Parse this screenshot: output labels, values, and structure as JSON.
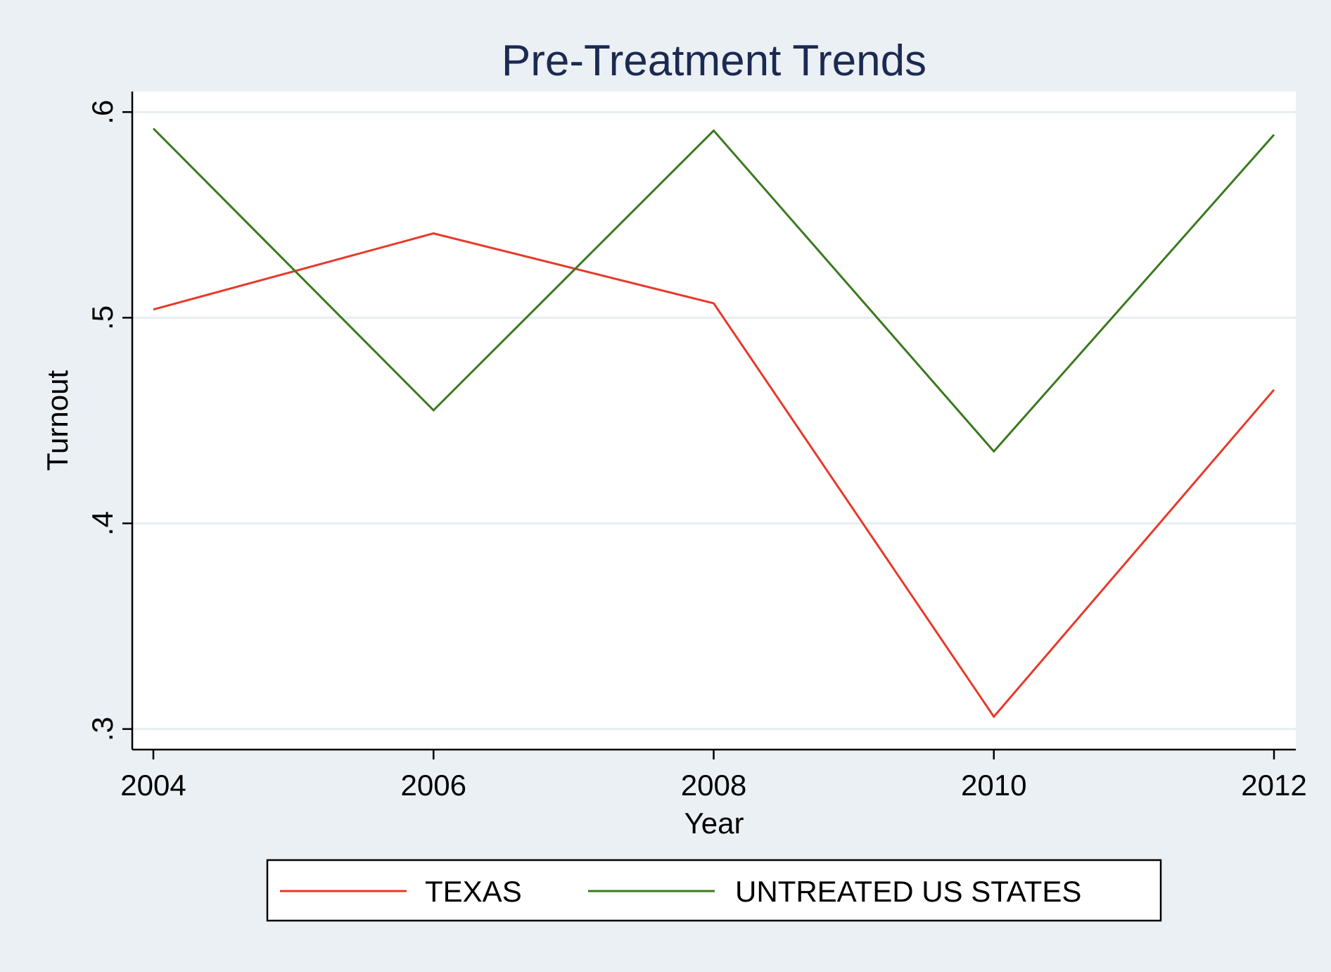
{
  "chart_data": {
    "type": "line",
    "title": "Pre-Treatment Trends",
    "xlabel": "Year",
    "ylabel": "Turnout",
    "x": [
      2004,
      2006,
      2008,
      2010,
      2012
    ],
    "xticks": [
      "2004",
      "2006",
      "2008",
      "2010",
      "2012"
    ],
    "yticks": [
      {
        "value": 0.3,
        "label": ".3"
      },
      {
        "value": 0.4,
        "label": ".4"
      },
      {
        "value": 0.5,
        "label": ".5"
      },
      {
        "value": 0.6,
        "label": ".6"
      }
    ],
    "xlim": [
      2004,
      2012
    ],
    "ylim": [
      0.29,
      0.61
    ],
    "grid": true,
    "legend_position": "bottom",
    "series": [
      {
        "name": "TEXAS",
        "color": "#e8392a",
        "values": [
          0.504,
          0.541,
          0.507,
          0.306,
          0.465
        ]
      },
      {
        "name": "UNTREATED US STATES",
        "color": "#3a7a1e",
        "values": [
          0.592,
          0.455,
          0.591,
          0.435,
          0.589
        ]
      }
    ]
  },
  "colors": {
    "background": "#eaf0f3",
    "plot_area": "#ffffff",
    "gridline": "#e6eef1",
    "title": "#1c2a52",
    "axis": "#000000"
  }
}
